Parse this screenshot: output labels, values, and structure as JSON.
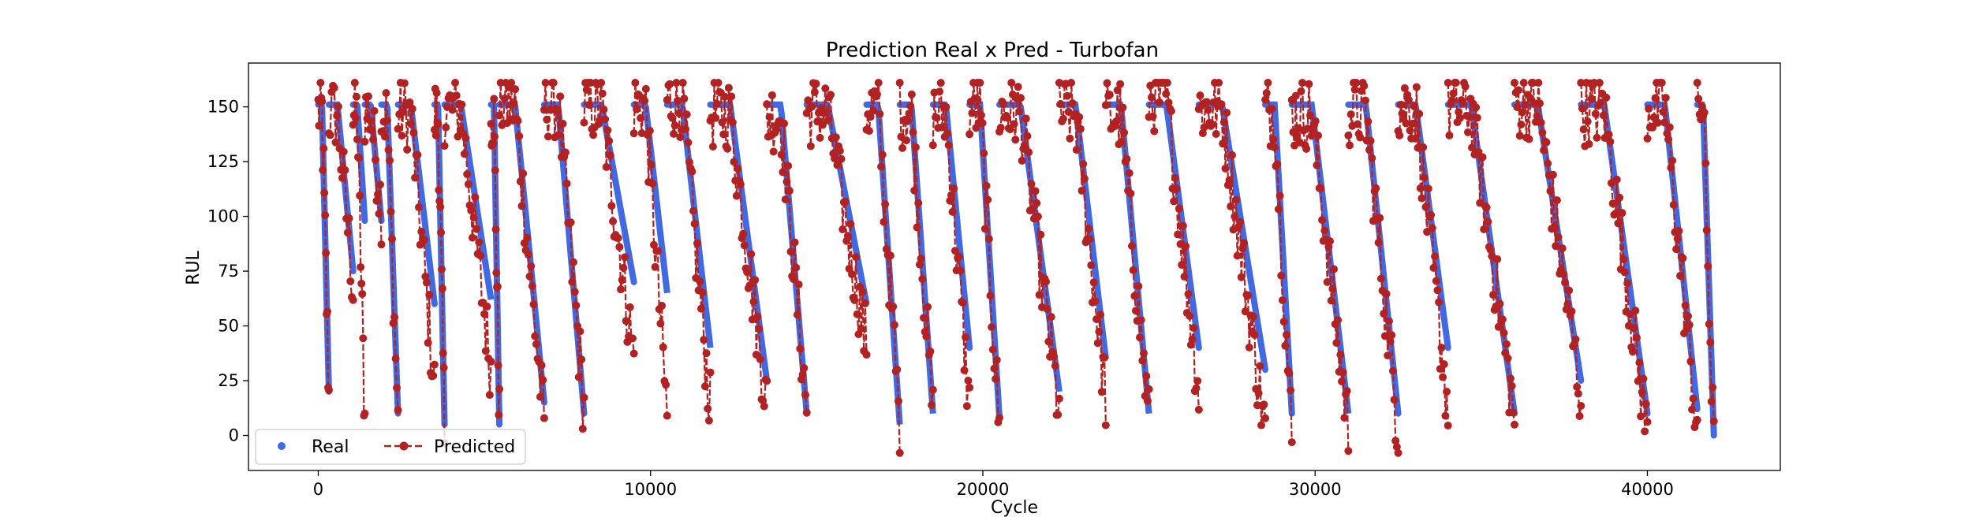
{
  "chart_data": {
    "type": "line",
    "title": "Prediction Real x Pred - Turbofan",
    "xlabel": "Cycle",
    "ylabel": "RUL",
    "xlim": [
      -2100,
      44000
    ],
    "ylim": [
      -16,
      170
    ],
    "x_ticks": [
      0,
      10000,
      20000,
      30000,
      40000
    ],
    "y_ticks": [
      0,
      25,
      50,
      75,
      100,
      125,
      150
    ],
    "x_range": [
      0,
      42000
    ],
    "real_range": [
      0,
      151
    ],
    "pred_range": [
      -8,
      161
    ],
    "series": [
      {
        "name": "Real",
        "style": "markers",
        "color": "#4169e1"
      },
      {
        "name": "Predicted",
        "style": "dashed-line-markers",
        "color": "#b22222"
      }
    ],
    "segments": [
      {
        "x": [
          0,
          320
        ],
        "real": [
          151,
          20
        ],
        "pred": [
          154,
          18
        ]
      },
      {
        "x": [
          320,
          1050
        ],
        "real": [
          151,
          75
        ],
        "pred": [
          153,
          68
        ]
      },
      {
        "x": [
          1050,
          1400
        ],
        "real": [
          151,
          98
        ],
        "pred": [
          152,
          7
        ]
      },
      {
        "x": [
          1400,
          1900
        ],
        "real": [
          151,
          98
        ],
        "pred": [
          154,
          104
        ]
      },
      {
        "x": [
          1900,
          2400
        ],
        "real": [
          151,
          10
        ],
        "pred": [
          152,
          6
        ]
      },
      {
        "x": [
          2400,
          3500
        ],
        "real": [
          151,
          60
        ],
        "pred": [
          153,
          22
        ]
      },
      {
        "x": [
          3500,
          3800
        ],
        "real": [
          151,
          5
        ],
        "pred": [
          152,
          3
        ]
      },
      {
        "x": [
          3800,
          5200
        ],
        "real": [
          151,
          62
        ],
        "pred": [
          155,
          30
        ]
      },
      {
        "x": [
          5200,
          5450
        ],
        "real": [
          151,
          5
        ],
        "pred": [
          152,
          8
        ]
      },
      {
        "x": [
          5450,
          6800
        ],
        "real": [
          151,
          15
        ],
        "pred": [
          157,
          4
        ]
      },
      {
        "x": [
          6800,
          8000
        ],
        "real": [
          151,
          10
        ],
        "pred": [
          158,
          12
        ]
      },
      {
        "x": [
          8000,
          9500
        ],
        "real": [
          151,
          70
        ],
        "pred": [
          156,
          35
        ]
      },
      {
        "x": [
          9500,
          10500
        ],
        "real": [
          151,
          65
        ],
        "pred": [
          157,
          8
        ]
      },
      {
        "x": [
          10500,
          11800
        ],
        "real": [
          151,
          40
        ],
        "pred": [
          159,
          12
        ]
      },
      {
        "x": [
          11800,
          13500
        ],
        "real": [
          151,
          25
        ],
        "pred": [
          153,
          14
        ]
      },
      {
        "x": [
          13500,
          14700
        ],
        "real": [
          151,
          10
        ],
        "pred": [
          152,
          12
        ]
      },
      {
        "x": [
          14700,
          16500
        ],
        "real": [
          151,
          60
        ],
        "pred": [
          154,
          41
        ]
      },
      {
        "x": [
          16500,
          17500
        ],
        "real": [
          151,
          5
        ],
        "pred": [
          155,
          4
        ]
      },
      {
        "x": [
          17500,
          18500
        ],
        "real": [
          151,
          10
        ],
        "pred": [
          154,
          8
        ]
      },
      {
        "x": [
          18500,
          19600
        ],
        "real": [
          151,
          40
        ],
        "pred": [
          153,
          12
        ]
      },
      {
        "x": [
          19600,
          20500
        ],
        "real": [
          151,
          8
        ],
        "pred": [
          156,
          1
        ]
      },
      {
        "x": [
          20500,
          22300
        ],
        "real": [
          151,
          20
        ],
        "pred": [
          154,
          10
        ]
      },
      {
        "x": [
          22300,
          23700
        ],
        "real": [
          151,
          35
        ],
        "pred": [
          153,
          18
        ]
      },
      {
        "x": [
          23700,
          25000
        ],
        "real": [
          151,
          10
        ],
        "pred": [
          152,
          6
        ]
      },
      {
        "x": [
          25000,
          26500
        ],
        "real": [
          151,
          40
        ],
        "pred": [
          161,
          20
        ]
      },
      {
        "x": [
          26500,
          28500
        ],
        "real": [
          151,
          30
        ],
        "pred": [
          155,
          2
        ]
      },
      {
        "x": [
          28500,
          29300
        ],
        "real": [
          151,
          10
        ],
        "pred": [
          154,
          -3
        ]
      },
      {
        "x": [
          29300,
          31000
        ],
        "real": [
          151,
          10
        ],
        "pred": [
          153,
          3
        ]
      },
      {
        "x": [
          31000,
          32500
        ],
        "real": [
          151,
          10
        ],
        "pred": [
          154,
          2
        ]
      },
      {
        "x": [
          32500,
          34000
        ],
        "real": [
          151,
          40
        ],
        "pred": [
          156,
          12
        ]
      },
      {
        "x": [
          34000,
          36000
        ],
        "real": [
          151,
          10
        ],
        "pred": [
          155,
          8
        ]
      },
      {
        "x": [
          36000,
          38000
        ],
        "real": [
          151,
          25
        ],
        "pred": [
          158,
          18
        ]
      },
      {
        "x": [
          38000,
          40000
        ],
        "real": [
          151,
          10
        ],
        "pred": [
          155,
          0
        ]
      },
      {
        "x": [
          40000,
          41500
        ],
        "real": [
          151,
          12
        ],
        "pred": [
          156,
          2
        ]
      },
      {
        "x": [
          41500,
          42000
        ],
        "real": [
          151,
          0
        ],
        "pred": [
          157,
          -8
        ]
      }
    ],
    "legend": {
      "placement": "lower-left",
      "columns": 2
    },
    "grid": false
  }
}
